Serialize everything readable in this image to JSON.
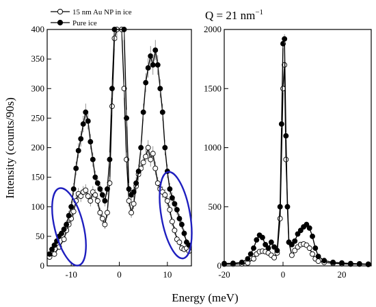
{
  "annotation": {
    "q_main": "Q = 21 nm",
    "q_sup": "−1"
  },
  "axes": {
    "xlabel": "Energy (meV)",
    "ylabel": "Intensity (counts/90s)"
  },
  "colors": {
    "ellipse": "#1f1fbf",
    "filled": "#000000",
    "open": "#ffffff"
  },
  "chart_data": [
    {
      "type": "line",
      "panel": "left",
      "xlim": [
        -15,
        15
      ],
      "ylim": [
        0,
        400
      ],
      "xticks": [
        "-10",
        "0",
        "10"
      ],
      "yticks": [
        "0",
        "50",
        "100",
        "150",
        "200",
        "250",
        "300",
        "350",
        "400"
      ],
      "series": [
        {
          "name": "15 nm Au NP in ice",
          "marker": "open-circle",
          "points": [
            [
              -14.5,
              15
            ],
            [
              -13.5,
              20
            ],
            [
              -12.5,
              32
            ],
            [
              -11.5,
              45
            ],
            [
              -11,
              60
            ],
            [
              -10.5,
              70
            ],
            [
              -10,
              80
            ],
            [
              -9.5,
              92
            ],
            [
              -9,
              110
            ],
            [
              -8.5,
              122
            ],
            [
              -8,
              118
            ],
            [
              -7.5,
              125
            ],
            [
              -7,
              128
            ],
            [
              -6.5,
              118
            ],
            [
              -6,
              110
            ],
            [
              -5.5,
              125
            ],
            [
              -5,
              120
            ],
            [
              -4.5,
              110
            ],
            [
              -4,
              90
            ],
            [
              -3.5,
              80
            ],
            [
              -3,
              70
            ],
            [
              -2.5,
              90
            ],
            [
              -2,
              140
            ],
            [
              -1.5,
              270
            ],
            [
              -1,
              385
            ],
            [
              -0.5,
              400
            ],
            [
              0.5,
              400
            ],
            [
              1,
              300
            ],
            [
              1.5,
              180
            ],
            [
              2,
              110
            ],
            [
              2.5,
              90
            ],
            [
              3,
              105
            ],
            [
              3.5,
              135
            ],
            [
              4,
              155
            ],
            [
              4.5,
              165
            ],
            [
              5,
              175
            ],
            [
              5.5,
              185
            ],
            [
              6,
              200
            ],
            [
              6.5,
              180
            ],
            [
              7,
              190
            ],
            [
              7.5,
              165
            ],
            [
              8,
              140
            ],
            [
              8.5,
              130
            ],
            [
              9,
              125
            ],
            [
              9.5,
              120
            ],
            [
              10,
              110
            ],
            [
              10.5,
              95
            ],
            [
              11,
              75
            ],
            [
              11.5,
              60
            ],
            [
              12,
              45
            ],
            [
              12.5,
              40
            ],
            [
              13,
              30
            ],
            [
              13.5,
              28
            ],
            [
              14,
              30
            ],
            [
              14.5,
              25
            ]
          ]
        },
        {
          "name": "Pure ice",
          "marker": "filled-circle",
          "points": [
            [
              -14.5,
              20
            ],
            [
              -14,
              28
            ],
            [
              -13.5,
              35
            ],
            [
              -13,
              42
            ],
            [
              -12.5,
              50
            ],
            [
              -12,
              55
            ],
            [
              -11.5,
              62
            ],
            [
              -11,
              70
            ],
            [
              -10.5,
              85
            ],
            [
              -10,
              100
            ],
            [
              -9.5,
              130
            ],
            [
              -9,
              165
            ],
            [
              -8.5,
              195
            ],
            [
              -8,
              215
            ],
            [
              -7.5,
              240
            ],
            [
              -7,
              260
            ],
            [
              -6.5,
              245
            ],
            [
              -6,
              210
            ],
            [
              -5.5,
              180
            ],
            [
              -5,
              150
            ],
            [
              -4.5,
              140
            ],
            [
              -4,
              130
            ],
            [
              -3.5,
              120
            ],
            [
              -3,
              110
            ],
            [
              -2.5,
              130
            ],
            [
              -2,
              180
            ],
            [
              -1.5,
              300
            ],
            [
              -1,
              400
            ],
            [
              1,
              400
            ],
            [
              1.5,
              250
            ],
            [
              2,
              130
            ],
            [
              2.5,
              120
            ],
            [
              3,
              125
            ],
            [
              3.5,
              140
            ],
            [
              4,
              160
            ],
            [
              4.5,
              200
            ],
            [
              5,
              260
            ],
            [
              5.5,
              310
            ],
            [
              6,
              335
            ],
            [
              6.5,
              355
            ],
            [
              7,
              340
            ],
            [
              7.5,
              365
            ],
            [
              8,
              340
            ],
            [
              8.5,
              300
            ],
            [
              9,
              260
            ],
            [
              9.5,
              200
            ],
            [
              10,
              160
            ],
            [
              10.5,
              130
            ],
            [
              11,
              115
            ],
            [
              11.5,
              105
            ],
            [
              12,
              95
            ],
            [
              12.5,
              80
            ],
            [
              13,
              70
            ],
            [
              13.5,
              55
            ],
            [
              14,
              40
            ],
            [
              14.5,
              35
            ]
          ]
        }
      ]
    },
    {
      "type": "line",
      "panel": "right",
      "xlim": [
        -20,
        30
      ],
      "ylim": [
        0,
        2000
      ],
      "xticks": [
        "-20",
        "0",
        "20"
      ],
      "yticks": [
        "0",
        "500",
        "1000",
        "1500",
        "2000"
      ],
      "series": [
        {
          "name": "15 nm Au NP in ice",
          "marker": "open-circle",
          "points": [
            [
              -20,
              15
            ],
            [
              -17,
              15
            ],
            [
              -14,
              18
            ],
            [
              -12,
              25
            ],
            [
              -10,
              60
            ],
            [
              -9,
              100
            ],
            [
              -8,
              120
            ],
            [
              -7,
              125
            ],
            [
              -6,
              120
            ],
            [
              -5,
              110
            ],
            [
              -4,
              90
            ],
            [
              -3,
              70
            ],
            [
              -2,
              110
            ],
            [
              -1,
              400
            ],
            [
              0,
              1500
            ],
            [
              0.5,
              1700
            ],
            [
              1,
              900
            ],
            [
              2,
              200
            ],
            [
              3,
              90
            ],
            [
              4,
              130
            ],
            [
              5,
              160
            ],
            [
              6,
              180
            ],
            [
              7,
              185
            ],
            [
              8,
              175
            ],
            [
              9,
              150
            ],
            [
              10,
              100
            ],
            [
              11,
              60
            ],
            [
              12,
              40
            ],
            [
              14,
              30
            ],
            [
              17,
              22
            ],
            [
              20,
              18
            ],
            [
              23,
              15
            ],
            [
              26,
              15
            ],
            [
              29,
              12
            ]
          ]
        },
        {
          "name": "Pure ice",
          "marker": "filled-circle",
          "points": [
            [
              -20,
              20
            ],
            [
              -17,
              22
            ],
            [
              -14,
              30
            ],
            [
              -12,
              60
            ],
            [
              -11,
              100
            ],
            [
              -10,
              150
            ],
            [
              -9,
              220
            ],
            [
              -8,
              260
            ],
            [
              -7,
              240
            ],
            [
              -6,
              180
            ],
            [
              -5,
              150
            ],
            [
              -4,
              200
            ],
            [
              -3,
              160
            ],
            [
              -2,
              130
            ],
            [
              -1,
              500
            ],
            [
              -0.5,
              1200
            ],
            [
              0,
              1880
            ],
            [
              0.5,
              1920
            ],
            [
              1,
              1100
            ],
            [
              1.5,
              500
            ],
            [
              2,
              200
            ],
            [
              3,
              180
            ],
            [
              4,
              210
            ],
            [
              5,
              270
            ],
            [
              6,
              300
            ],
            [
              7,
              330
            ],
            [
              8,
              350
            ],
            [
              9,
              320
            ],
            [
              10,
              250
            ],
            [
              11,
              150
            ],
            [
              12,
              80
            ],
            [
              14,
              45
            ],
            [
              17,
              30
            ],
            [
              20,
              25
            ],
            [
              23,
              20
            ],
            [
              26,
              18
            ],
            [
              29,
              15
            ]
          ]
        }
      ]
    }
  ]
}
